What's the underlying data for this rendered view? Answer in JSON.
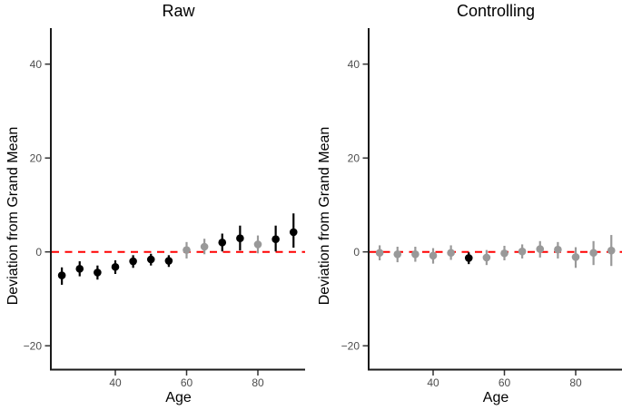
{
  "figure": {
    "background": "#FFFFFF"
  },
  "colors": {
    "significant_point": "#000000",
    "nonsignificant_point": "#999999",
    "reference_line": "#FF0000",
    "axis_line": "#1A1A1A",
    "tick_mark": "#333333",
    "tick_text": "#4D4D4D",
    "title_text": "#000000"
  },
  "chart_data": [
    {
      "type": "scatter",
      "panel": "Raw",
      "xlabel": "Age",
      "ylabel": "Deviation from Grand Mean",
      "x_ticks": [
        {
          "label": "40",
          "value": 40
        },
        {
          "label": "60",
          "value": 60
        },
        {
          "label": "80",
          "value": 80
        }
      ],
      "y_ticks": [
        {
          "label": "40",
          "value": 40
        },
        {
          "label": "20",
          "value": 20
        },
        {
          "label": "0",
          "value": 0
        },
        {
          "label": "−20",
          "value": -20
        }
      ],
      "xlim": [
        22,
        93
      ],
      "ylim": [
        -25,
        48
      ],
      "reference_line_y": 0,
      "grid": false,
      "legend": "none",
      "points": [
        {
          "age": 25,
          "value": -5.0,
          "ci_low": -7.0,
          "ci_high": -3.3,
          "significant": true
        },
        {
          "age": 30,
          "value": -3.6,
          "ci_low": -5.2,
          "ci_high": -2.0,
          "significant": true
        },
        {
          "age": 35,
          "value": -4.4,
          "ci_low": -5.9,
          "ci_high": -2.9,
          "significant": true
        },
        {
          "age": 40,
          "value": -3.2,
          "ci_low": -4.7,
          "ci_high": -1.8,
          "significant": true
        },
        {
          "age": 45,
          "value": -2.0,
          "ci_low": -3.4,
          "ci_high": -0.7,
          "significant": true
        },
        {
          "age": 50,
          "value": -1.6,
          "ci_low": -2.9,
          "ci_high": -0.4,
          "significant": true
        },
        {
          "age": 55,
          "value": -1.9,
          "ci_low": -3.2,
          "ci_high": -0.7,
          "significant": true
        },
        {
          "age": 60,
          "value": 0.4,
          "ci_low": -1.4,
          "ci_high": 2.1,
          "significant": false
        },
        {
          "age": 65,
          "value": 1.1,
          "ci_low": -0.5,
          "ci_high": 2.8,
          "significant": false
        },
        {
          "age": 70,
          "value": 2.0,
          "ci_low": 0.1,
          "ci_high": 3.9,
          "significant": true
        },
        {
          "age": 75,
          "value": 2.9,
          "ci_low": 0.3,
          "ci_high": 5.6,
          "significant": true
        },
        {
          "age": 80,
          "value": 1.6,
          "ci_low": -0.3,
          "ci_high": 3.5,
          "significant": false
        },
        {
          "age": 85,
          "value": 2.7,
          "ci_low": 0.1,
          "ci_high": 5.6,
          "significant": true
        },
        {
          "age": 90,
          "value": 4.2,
          "ci_low": 0.9,
          "ci_high": 8.2,
          "significant": true
        }
      ]
    },
    {
      "type": "scatter",
      "panel": "Controlling",
      "xlabel": "Age",
      "ylabel": "Deviation from Grand Mean",
      "x_ticks": [
        {
          "label": "40",
          "value": 40
        },
        {
          "label": "60",
          "value": 60
        },
        {
          "label": "80",
          "value": 80
        }
      ],
      "y_ticks": [
        {
          "label": "40",
          "value": 40
        },
        {
          "label": "20",
          "value": 20
        },
        {
          "label": "0",
          "value": 0
        },
        {
          "label": "−20",
          "value": -20
        }
      ],
      "xlim": [
        22,
        93
      ],
      "ylim": [
        -25,
        48
      ],
      "reference_line_y": 0,
      "grid": false,
      "legend": "none",
      "points": [
        {
          "age": 25,
          "value": -0.2,
          "ci_low": -1.8,
          "ci_high": 1.4,
          "significant": false
        },
        {
          "age": 30,
          "value": -0.5,
          "ci_low": -2.2,
          "ci_high": 1.1,
          "significant": false
        },
        {
          "age": 35,
          "value": -0.5,
          "ci_low": -2.1,
          "ci_high": 1.1,
          "significant": false
        },
        {
          "age": 40,
          "value": -0.8,
          "ci_low": -2.5,
          "ci_high": 0.8,
          "significant": false
        },
        {
          "age": 45,
          "value": -0.2,
          "ci_low": -1.7,
          "ci_high": 1.4,
          "significant": false
        },
        {
          "age": 50,
          "value": -1.3,
          "ci_low": -2.6,
          "ci_high": -0.1,
          "significant": true
        },
        {
          "age": 55,
          "value": -1.2,
          "ci_low": -2.8,
          "ci_high": 0.4,
          "significant": false
        },
        {
          "age": 60,
          "value": -0.3,
          "ci_low": -1.8,
          "ci_high": 1.3,
          "significant": false
        },
        {
          "age": 65,
          "value": 0.1,
          "ci_low": -1.4,
          "ci_high": 1.6,
          "significant": false
        },
        {
          "age": 70,
          "value": 0.6,
          "ci_low": -1.2,
          "ci_high": 2.3,
          "significant": false
        },
        {
          "age": 75,
          "value": 0.5,
          "ci_low": -1.4,
          "ci_high": 2.1,
          "significant": false
        },
        {
          "age": 80,
          "value": -1.1,
          "ci_low": -3.4,
          "ci_high": 1.0,
          "significant": false
        },
        {
          "age": 85,
          "value": -0.2,
          "ci_low": -2.8,
          "ci_high": 2.3,
          "significant": false
        },
        {
          "age": 90,
          "value": 0.3,
          "ci_low": -3.0,
          "ci_high": 3.6,
          "significant": false
        }
      ]
    }
  ]
}
